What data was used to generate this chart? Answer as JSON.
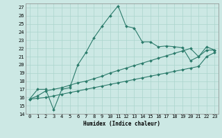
{
  "xlabel": "Humidex (Indice chaleur)",
  "bg_color": "#cce8e4",
  "grid_color": "#aad4cc",
  "line_color": "#2a7a6a",
  "xlim": [
    -0.5,
    23.5
  ],
  "ylim": [
    14,
    27.5
  ],
  "xticks": [
    0,
    1,
    2,
    3,
    4,
    5,
    6,
    7,
    8,
    9,
    10,
    11,
    12,
    13,
    14,
    15,
    16,
    17,
    18,
    19,
    20,
    21,
    22,
    23
  ],
  "yticks": [
    14,
    15,
    16,
    17,
    18,
    19,
    20,
    21,
    22,
    23,
    24,
    25,
    26,
    27
  ],
  "line1_x": [
    0,
    1,
    2,
    3,
    4,
    5,
    6,
    7,
    8,
    9,
    10,
    11,
    12,
    13,
    14,
    15,
    16,
    17,
    18,
    19,
    20,
    21,
    22,
    23
  ],
  "line1_y": [
    15.8,
    17.0,
    17.0,
    14.5,
    17.0,
    17.2,
    20.0,
    21.5,
    23.3,
    24.7,
    26.0,
    27.2,
    24.7,
    24.5,
    22.8,
    22.8,
    22.2,
    22.3,
    22.2,
    22.1,
    20.5,
    21.0,
    22.2,
    21.8
  ],
  "line2_x": [
    0,
    1,
    2,
    3,
    4,
    5,
    6,
    7,
    8,
    9,
    10,
    11,
    12,
    13,
    14,
    15,
    16,
    17,
    18,
    19,
    20,
    21,
    22,
    23
  ],
  "line2_y": [
    15.8,
    16.2,
    16.8,
    17.0,
    17.2,
    17.5,
    17.8,
    18.0,
    18.3,
    18.6,
    19.0,
    19.3,
    19.6,
    19.9,
    20.2,
    20.5,
    20.8,
    21.1,
    21.4,
    21.7,
    22.0,
    21.0,
    21.8,
    21.8
  ],
  "line3_x": [
    0,
    1,
    2,
    3,
    4,
    5,
    6,
    7,
    8,
    9,
    10,
    11,
    12,
    13,
    14,
    15,
    16,
    17,
    18,
    19,
    20,
    21,
    22,
    23
  ],
  "line3_y": [
    15.8,
    15.9,
    16.0,
    16.2,
    16.4,
    16.6,
    16.8,
    17.0,
    17.2,
    17.4,
    17.6,
    17.8,
    18.0,
    18.2,
    18.4,
    18.6,
    18.8,
    19.0,
    19.2,
    19.4,
    19.6,
    19.8,
    21.0,
    21.5
  ]
}
